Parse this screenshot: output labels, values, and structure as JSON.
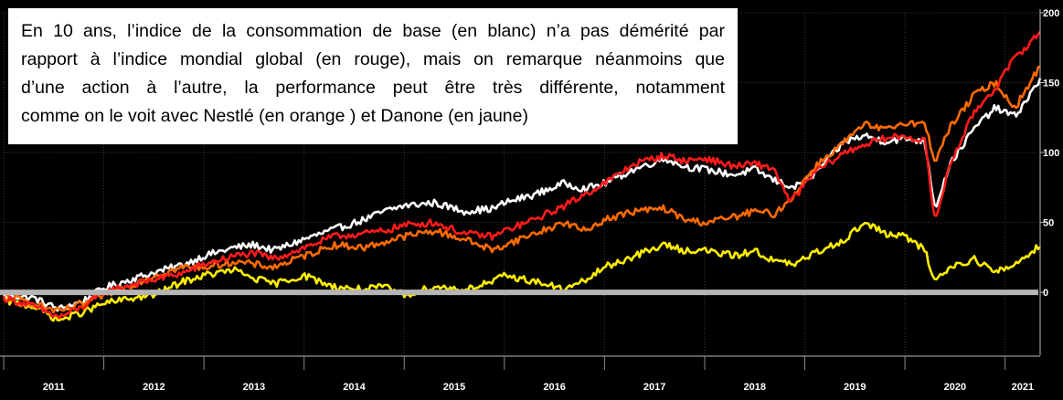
{
  "caption": {
    "lines": [
      "En 10 ans, l’indice de la consommation de base (en blanc) n’a pas démérité par",
      "rapport à l’indice mondial global (en rouge), mais on remarque néanmoins que",
      "d’une action à l’autre, la performance peut être très différente, notamment",
      "comme on le voit avec Nestlé (en orange ) et Danone (en jaune)"
    ]
  },
  "chart_data": {
    "type": "line",
    "x_ticks": [
      "2011",
      "2012",
      "2013",
      "2014",
      "2015",
      "2016",
      "2017",
      "2018",
      "2019",
      "2020",
      "2021"
    ],
    "y_ticks": [
      0,
      50,
      100,
      150,
      200
    ],
    "ylim": [
      -45,
      200
    ],
    "xlim": [
      2011.0,
      2021.35
    ],
    "reference_line": 0,
    "grid": true,
    "series": [
      {
        "color": "#ffffff",
        "points": [
          [
            2011.0,
            -2
          ],
          [
            2011.3,
            -4
          ],
          [
            2011.55,
            -12
          ],
          [
            2011.8,
            -6
          ],
          [
            2012.0,
            3
          ],
          [
            2012.3,
            10
          ],
          [
            2012.5,
            14
          ],
          [
            2012.8,
            20
          ],
          [
            2013.0,
            26
          ],
          [
            2013.3,
            32
          ],
          [
            2013.5,
            34
          ],
          [
            2013.7,
            30
          ],
          [
            2014.0,
            38
          ],
          [
            2014.3,
            45
          ],
          [
            2014.6,
            52
          ],
          [
            2014.8,
            58
          ],
          [
            2015.0,
            62
          ],
          [
            2015.3,
            64
          ],
          [
            2015.6,
            58
          ],
          [
            2015.9,
            60
          ],
          [
            2016.0,
            64
          ],
          [
            2016.3,
            70
          ],
          [
            2016.6,
            78
          ],
          [
            2016.8,
            74
          ],
          [
            2017.0,
            78
          ],
          [
            2017.3,
            88
          ],
          [
            2017.6,
            96
          ],
          [
            2017.8,
            90
          ],
          [
            2018.0,
            88
          ],
          [
            2018.3,
            84
          ],
          [
            2018.5,
            88
          ],
          [
            2018.7,
            80
          ],
          [
            2018.9,
            75
          ],
          [
            2019.1,
            85
          ],
          [
            2019.4,
            108
          ],
          [
            2019.6,
            112
          ],
          [
            2019.8,
            108
          ],
          [
            2020.0,
            110
          ],
          [
            2020.2,
            108
          ],
          [
            2020.3,
            60
          ],
          [
            2020.45,
            92
          ],
          [
            2020.7,
            118
          ],
          [
            2020.9,
            132
          ],
          [
            2021.1,
            126
          ],
          [
            2021.35,
            152
          ]
        ]
      },
      {
        "color": "#ff1a1a",
        "points": [
          [
            2011.0,
            -4
          ],
          [
            2011.3,
            -10
          ],
          [
            2011.55,
            -18
          ],
          [
            2011.8,
            -10
          ],
          [
            2012.0,
            0
          ],
          [
            2012.3,
            6
          ],
          [
            2012.5,
            9
          ],
          [
            2012.8,
            14
          ],
          [
            2013.0,
            20
          ],
          [
            2013.3,
            26
          ],
          [
            2013.5,
            28
          ],
          [
            2013.7,
            24
          ],
          [
            2014.0,
            32
          ],
          [
            2014.3,
            40
          ],
          [
            2014.6,
            42
          ],
          [
            2014.8,
            44
          ],
          [
            2015.0,
            48
          ],
          [
            2015.3,
            50
          ],
          [
            2015.6,
            42
          ],
          [
            2015.9,
            40
          ],
          [
            2016.0,
            44
          ],
          [
            2016.3,
            52
          ],
          [
            2016.6,
            62
          ],
          [
            2016.8,
            70
          ],
          [
            2017.0,
            78
          ],
          [
            2017.3,
            92
          ],
          [
            2017.6,
            98
          ],
          [
            2017.8,
            94
          ],
          [
            2018.0,
            96
          ],
          [
            2018.3,
            90
          ],
          [
            2018.5,
            92
          ],
          [
            2018.7,
            88
          ],
          [
            2018.85,
            64
          ],
          [
            2019.1,
            86
          ],
          [
            2019.4,
            100
          ],
          [
            2019.6,
            106
          ],
          [
            2019.8,
            110
          ],
          [
            2020.0,
            112
          ],
          [
            2020.2,
            108
          ],
          [
            2020.3,
            50
          ],
          [
            2020.45,
            92
          ],
          [
            2020.7,
            130
          ],
          [
            2020.9,
            146
          ],
          [
            2021.1,
            168
          ],
          [
            2021.35,
            186
          ]
        ]
      },
      {
        "color": "#ff6a00",
        "points": [
          [
            2011.0,
            -2
          ],
          [
            2011.3,
            -8
          ],
          [
            2011.55,
            -14
          ],
          [
            2011.8,
            -8
          ],
          [
            2012.0,
            -2
          ],
          [
            2012.3,
            6
          ],
          [
            2012.5,
            12
          ],
          [
            2012.8,
            18
          ],
          [
            2013.0,
            18
          ],
          [
            2013.3,
            22
          ],
          [
            2013.5,
            20
          ],
          [
            2013.7,
            18
          ],
          [
            2014.0,
            26
          ],
          [
            2014.3,
            34
          ],
          [
            2014.6,
            32
          ],
          [
            2014.8,
            36
          ],
          [
            2015.0,
            40
          ],
          [
            2015.3,
            44
          ],
          [
            2015.6,
            38
          ],
          [
            2015.9,
            30
          ],
          [
            2016.0,
            34
          ],
          [
            2016.3,
            42
          ],
          [
            2016.6,
            50
          ],
          [
            2016.8,
            44
          ],
          [
            2017.0,
            52
          ],
          [
            2017.3,
            58
          ],
          [
            2017.6,
            60
          ],
          [
            2017.8,
            52
          ],
          [
            2018.0,
            50
          ],
          [
            2018.3,
            54
          ],
          [
            2018.5,
            58
          ],
          [
            2018.7,
            56
          ],
          [
            2018.85,
            66
          ],
          [
            2019.1,
            90
          ],
          [
            2019.4,
            108
          ],
          [
            2019.6,
            120
          ],
          [
            2019.8,
            116
          ],
          [
            2020.0,
            122
          ],
          [
            2020.2,
            120
          ],
          [
            2020.3,
            94
          ],
          [
            2020.45,
            118
          ],
          [
            2020.7,
            142
          ],
          [
            2020.9,
            150
          ],
          [
            2021.1,
            132
          ],
          [
            2021.35,
            162
          ]
        ]
      },
      {
        "color": "#ffee00",
        "points": [
          [
            2011.0,
            -6
          ],
          [
            2011.3,
            -10
          ],
          [
            2011.55,
            -20
          ],
          [
            2011.8,
            -14
          ],
          [
            2012.0,
            -8
          ],
          [
            2012.3,
            -4
          ],
          [
            2012.5,
            -2
          ],
          [
            2012.8,
            8
          ],
          [
            2013.0,
            12
          ],
          [
            2013.3,
            16
          ],
          [
            2013.5,
            10
          ],
          [
            2013.7,
            6
          ],
          [
            2014.0,
            12
          ],
          [
            2014.3,
            4
          ],
          [
            2014.6,
            2
          ],
          [
            2014.8,
            4
          ],
          [
            2015.0,
            -2
          ],
          [
            2015.3,
            4
          ],
          [
            2015.6,
            2
          ],
          [
            2015.9,
            8
          ],
          [
            2016.0,
            12
          ],
          [
            2016.3,
            8
          ],
          [
            2016.6,
            2
          ],
          [
            2016.8,
            8
          ],
          [
            2017.0,
            18
          ],
          [
            2017.3,
            26
          ],
          [
            2017.6,
            34
          ],
          [
            2017.8,
            30
          ],
          [
            2018.0,
            30
          ],
          [
            2018.3,
            26
          ],
          [
            2018.5,
            30
          ],
          [
            2018.7,
            22
          ],
          [
            2018.9,
            20
          ],
          [
            2019.1,
            28
          ],
          [
            2019.4,
            38
          ],
          [
            2019.6,
            50
          ],
          [
            2019.8,
            42
          ],
          [
            2020.0,
            40
          ],
          [
            2020.2,
            30
          ],
          [
            2020.3,
            8
          ],
          [
            2020.45,
            18
          ],
          [
            2020.7,
            24
          ],
          [
            2020.9,
            14
          ],
          [
            2021.1,
            20
          ],
          [
            2021.35,
            34
          ]
        ]
      }
    ]
  }
}
